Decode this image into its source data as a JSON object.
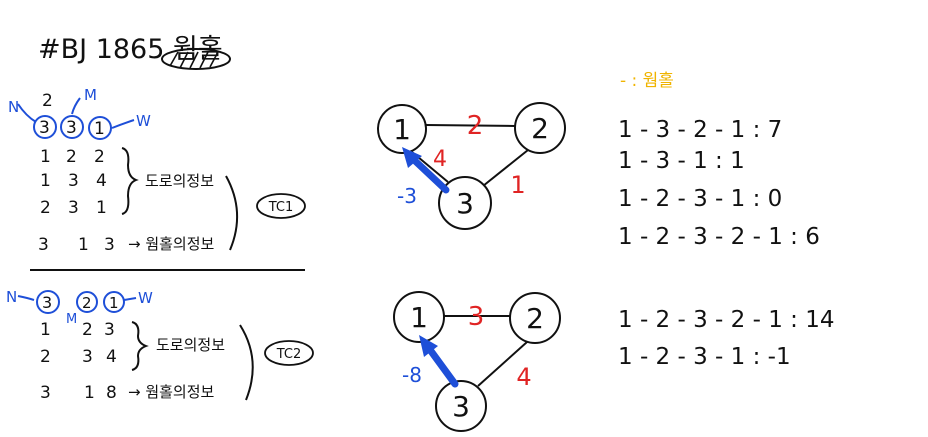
{
  "title": "#BJ 1865 웜홀",
  "tc1": {
    "label_n": "N",
    "label_m": "M",
    "label_w": "W",
    "n": "2",
    "header": [
      "3",
      "3",
      "1"
    ],
    "roads": [
      [
        "1",
        "2",
        "2"
      ],
      [
        "1",
        "3",
        "4"
      ],
      [
        "2",
        "3",
        "1"
      ]
    ],
    "road_label": "도로의정보",
    "wormhole": [
      "3",
      "1",
      "3"
    ],
    "wormhole_label": "→ 웜홀의정보",
    "badge": "TC1"
  },
  "tc2": {
    "label_n": "N",
    "label_m": "M",
    "label_w": "W",
    "header": [
      "3",
      "2",
      "1"
    ],
    "roads": [
      [
        "1",
        "2",
        "3"
      ],
      [
        "2",
        "3",
        "4"
      ]
    ],
    "road_label": "도로의정보",
    "wormhole": [
      "3",
      "1",
      "8"
    ],
    "wormhole_label": "→ 웜홀의정보",
    "badge": "TC2"
  },
  "graph1": {
    "nodes": [
      "1",
      "2",
      "3"
    ],
    "w12": "2",
    "w13": "4",
    "w23": "1",
    "wormhole": "-3"
  },
  "graph2": {
    "nodes": [
      "1",
      "2",
      "3"
    ],
    "w12": "3",
    "w23": "4",
    "wormhole": "-8"
  },
  "legend": "- : 웜홀",
  "paths1": [
    "1 - 3 - 2 - 1 : 7",
    "1 - 3 - 1 : 1",
    "1 - 2 - 3 - 1 : 0",
    "1 - 2 - 3 - 2 - 1 : 6"
  ],
  "paths2": [
    "1 - 2 - 3 - 2 - 1 : 14",
    "1 - 2 - 3 - 1 : -1"
  ],
  "colors": {
    "ink": "#111111",
    "blue": "#1e4fd8",
    "red": "#e02424",
    "yellow": "#f0b400"
  }
}
